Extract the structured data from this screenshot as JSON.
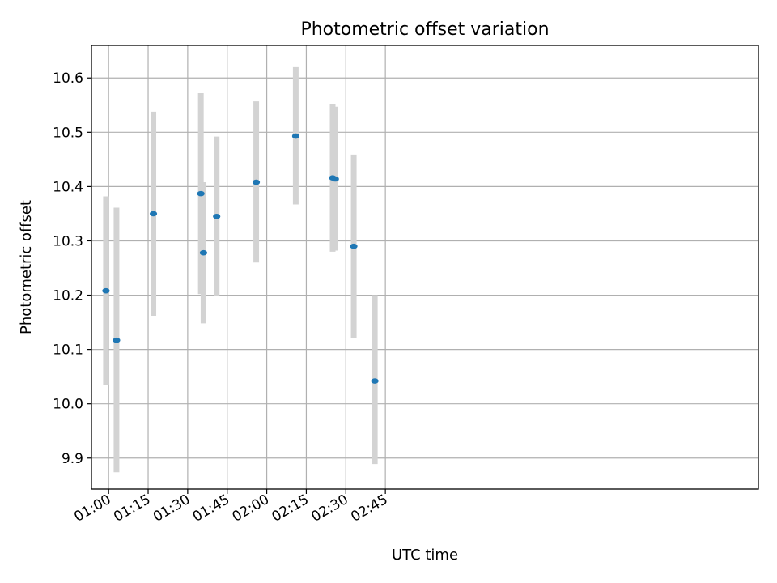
{
  "chart_data": {
    "type": "scatter",
    "title": "Photometric offset variation",
    "xlabel": "UTC time",
    "ylabel": "Photometric offset",
    "xlim_minutes": [
      53.5,
      306.5
    ],
    "ylim": [
      9.843,
      10.66
    ],
    "x_ticks": [
      {
        "value": 60,
        "label": "01:00"
      },
      {
        "value": 75,
        "label": "01:15"
      },
      {
        "value": 90,
        "label": "01:30"
      },
      {
        "value": 105,
        "label": "01:45"
      },
      {
        "value": 120,
        "label": "02:00"
      },
      {
        "value": 135,
        "label": "02:15"
      },
      {
        "value": 150,
        "label": "02:30"
      },
      {
        "value": 165,
        "label": "02:45"
      }
    ],
    "y_ticks": [
      {
        "value": 9.9,
        "label": "9.9"
      },
      {
        "value": 10.0,
        "label": "10.0"
      },
      {
        "value": 10.1,
        "label": "10.1"
      },
      {
        "value": 10.2,
        "label": "10.2"
      },
      {
        "value": 10.3,
        "label": "10.3"
      },
      {
        "value": 10.4,
        "label": "10.4"
      },
      {
        "value": 10.5,
        "label": "10.5"
      },
      {
        "value": 10.6,
        "label": "10.6"
      }
    ],
    "grid": true,
    "point_color": "#1f77b4",
    "errorbar_color": "#d3d3d3",
    "points": [
      {
        "time": "00:59",
        "y": 10.208,
        "ymin": 10.035,
        "ymax": 10.382
      },
      {
        "time": "01:03",
        "y": 10.117,
        "ymin": 9.874,
        "ymax": 10.361
      },
      {
        "time": "01:17",
        "y": 10.35,
        "ymin": 10.162,
        "ymax": 10.538
      },
      {
        "time": "01:35",
        "y": 10.387,
        "ymin": 10.202,
        "ymax": 10.572
      },
      {
        "time": "01:36",
        "y": 10.278,
        "ymin": 10.148,
        "ymax": 10.408
      },
      {
        "time": "01:41",
        "y": 10.345,
        "ymin": 10.199,
        "ymax": 10.492
      },
      {
        "time": "01:56",
        "y": 10.408,
        "ymin": 10.26,
        "ymax": 10.557
      },
      {
        "time": "02:11",
        "y": 10.493,
        "ymin": 10.367,
        "ymax": 10.62
      },
      {
        "time": "02:25",
        "y": 10.416,
        "ymin": 10.28,
        "ymax": 10.552
      },
      {
        "time": "02:26",
        "y": 10.414,
        "ymin": 10.282,
        "ymax": 10.547
      },
      {
        "time": "02:33",
        "y": 10.29,
        "ymin": 10.121,
        "ymax": 10.459
      },
      {
        "time": "02:41",
        "y": 10.042,
        "ymin": 9.889,
        "ymax": 10.2
      }
    ]
  }
}
